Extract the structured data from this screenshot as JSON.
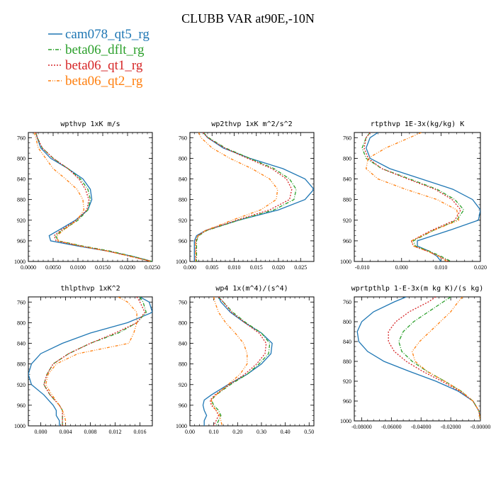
{
  "title": "CLUBB VAR at90E,-10N",
  "legend": [
    {
      "name": "cam078_qt5_rg",
      "color": "#1f77b4",
      "dash": ""
    },
    {
      "name": "beta06_dflt_rg",
      "color": "#2ca02c",
      "dash": "5,2,1,2"
    },
    {
      "name": "beta06_qt1_rg",
      "color": "#d62728",
      "dash": "2,2"
    },
    {
      "name": "beta06_qt2_rg",
      "color": "#ff7f0e",
      "dash": "4,2,1,2,1,2"
    }
  ],
  "chart_data": [
    {
      "type": "line",
      "title": "wpthvp  1xK m/s",
      "xlim": [
        0,
        0.025
      ],
      "xticks": [
        0,
        0.005,
        0.01,
        0.015,
        0.02,
        0.025
      ],
      "xtick_labels": [
        "0.0000",
        "0.0050",
        "0.0100",
        "0.0150",
        "0.0200",
        "0.0250"
      ],
      "ylim": [
        1000,
        750
      ],
      "yticks": [
        760,
        800,
        840,
        880,
        920,
        960,
        1000
      ],
      "y": [
        750,
        760,
        780,
        800,
        820,
        840,
        860,
        880,
        900,
        920,
        940,
        950,
        960,
        970,
        980,
        990,
        1000
      ],
      "series": [
        {
          "name": "cam078_qt5_rg",
          "values": [
            0.0015,
            0.0018,
            0.0025,
            0.0045,
            0.008,
            0.011,
            0.0125,
            0.0128,
            0.012,
            0.0095,
            0.006,
            0.0042,
            0.0045,
            0.01,
            0.016,
            0.021,
            0.025
          ]
        },
        {
          "name": "beta06_dflt_rg",
          "values": [
            0.0015,
            0.0018,
            0.0028,
            0.005,
            0.008,
            0.0105,
            0.012,
            0.0125,
            0.012,
            0.01,
            0.0068,
            0.0055,
            0.006,
            0.011,
            0.0165,
            0.021,
            0.025
          ]
        },
        {
          "name": "beta06_qt1_rg",
          "values": [
            0.0015,
            0.0018,
            0.0028,
            0.005,
            0.008,
            0.0102,
            0.0115,
            0.0122,
            0.0118,
            0.0097,
            0.0065,
            0.0052,
            0.0056,
            0.0105,
            0.016,
            0.0205,
            0.0248
          ]
        },
        {
          "name": "beta06_qt2_rg",
          "values": [
            0.0012,
            0.0015,
            0.002,
            0.0035,
            0.005,
            0.0075,
            0.0098,
            0.011,
            0.0112,
            0.0098,
            0.007,
            0.0058,
            0.006,
            0.0105,
            0.016,
            0.0205,
            0.0248
          ]
        }
      ]
    },
    {
      "type": "line",
      "title": "wp2thvp  1xK m^2/s^2",
      "xlim": [
        0,
        0.028
      ],
      "xticks": [
        0,
        0.005,
        0.01,
        0.015,
        0.02,
        0.025
      ],
      "xtick_labels": [
        "0.000",
        "0.005",
        "0.010",
        "0.015",
        "0.020",
        "0.025"
      ],
      "ylim": [
        1000,
        750
      ],
      "yticks": [
        760,
        800,
        840,
        880,
        920,
        960,
        1000
      ],
      "y": [
        750,
        760,
        780,
        800,
        820,
        840,
        860,
        880,
        900,
        920,
        940,
        950,
        960,
        980,
        1000
      ],
      "series": [
        {
          "name": "cam078_qt5_rg",
          "values": [
            0.003,
            0.004,
            0.0075,
            0.0135,
            0.021,
            0.026,
            0.028,
            0.026,
            0.02,
            0.011,
            0.0035,
            0.0015,
            0.001,
            0.001,
            0.001
          ]
        },
        {
          "name": "beta06_dflt_rg",
          "values": [
            0.003,
            0.0042,
            0.008,
            0.0135,
            0.019,
            0.0225,
            0.024,
            0.0235,
            0.019,
            0.011,
            0.0038,
            0.002,
            0.0015,
            0.0015,
            0.0015
          ]
        },
        {
          "name": "beta06_qt1_rg",
          "values": [
            0.003,
            0.004,
            0.0078,
            0.013,
            0.0185,
            0.0218,
            0.023,
            0.0225,
            0.018,
            0.0105,
            0.0036,
            0.0018,
            0.0013,
            0.0013,
            0.0013
          ]
        },
        {
          "name": "beta06_qt2_rg",
          "values": [
            0.002,
            0.0025,
            0.005,
            0.009,
            0.014,
            0.018,
            0.0198,
            0.0195,
            0.016,
            0.0095,
            0.0035,
            0.0018,
            0.0013,
            0.0013,
            0.0013
          ]
        }
      ]
    },
    {
      "type": "line",
      "title": "rtpthvp  1E-3x(kg/kg) K",
      "xlim": [
        -0.012,
        0.02
      ],
      "xticks": [
        -0.01,
        0,
        0.01,
        0.02
      ],
      "xtick_labels": [
        "-0.010",
        "0.000",
        "0.010",
        "0.020"
      ],
      "ylim": [
        1000,
        750
      ],
      "yticks": [
        760,
        800,
        840,
        880,
        920,
        960,
        1000
      ],
      "y": [
        750,
        760,
        780,
        800,
        820,
        840,
        860,
        880,
        900,
        920,
        940,
        960,
        970,
        980,
        990,
        1000
      ],
      "series": [
        {
          "name": "cam078_qt5_rg",
          "values": [
            -0.006,
            -0.008,
            -0.009,
            -0.008,
            -0.003,
            0.005,
            0.013,
            0.018,
            0.02,
            0.0195,
            0.012,
            0.004,
            0.004,
            0.007,
            0.009,
            0.01
          ]
        },
        {
          "name": "beta06_dflt_rg",
          "values": [
            -0.008,
            -0.009,
            -0.01,
            -0.009,
            -0.005,
            0.002,
            0.009,
            0.0135,
            0.0158,
            0.014,
            0.008,
            0.003,
            0.0035,
            0.007,
            0.01,
            0.0125
          ]
        },
        {
          "name": "beta06_qt1_rg",
          "values": [
            -0.008,
            -0.009,
            -0.0095,
            -0.0085,
            -0.005,
            0.0015,
            0.0085,
            0.0128,
            0.015,
            0.0135,
            0.0075,
            0.0025,
            0.003,
            0.0065,
            0.0095,
            0.012
          ]
        },
        {
          "name": "beta06_qt2_rg",
          "values": [
            0.005,
            0.002,
            -0.004,
            -0.0085,
            -0.009,
            -0.006,
            0.001,
            0.009,
            0.014,
            0.0145,
            0.008,
            0.0025,
            0.003,
            0.0065,
            0.0095,
            0.0115
          ]
        }
      ]
    },
    {
      "type": "line",
      "title": "thlpthvp  1xK^2",
      "xlim": [
        -0.002,
        0.018
      ],
      "xticks": [
        0,
        0.004,
        0.008,
        0.012,
        0.016
      ],
      "xtick_labels": [
        "0.000",
        "0.004",
        "0.008",
        "0.012",
        "0.016"
      ],
      "ylim": [
        1000,
        750
      ],
      "yticks": [
        760,
        800,
        840,
        880,
        920,
        960,
        1000
      ],
      "y": [
        750,
        760,
        780,
        800,
        820,
        840,
        860,
        880,
        900,
        920,
        940,
        960,
        970,
        980,
        990,
        1000
      ],
      "series": [
        {
          "name": "cam078_qt5_rg",
          "values": [
            0.016,
            0.0175,
            0.018,
            0.014,
            0.008,
            0.0035,
            0,
            -0.0015,
            -0.002,
            -0.0015,
            0.0005,
            0.002,
            0.0025,
            0.0025,
            0.003,
            0.003
          ]
        },
        {
          "name": "beta06_dflt_rg",
          "values": [
            0.016,
            0.0165,
            0.017,
            0.0155,
            0.0125,
            0.008,
            0.0045,
            0.002,
            0.001,
            0.0005,
            0.0015,
            0.003,
            0.0035,
            0.0035,
            0.0035,
            0.0035
          ]
        },
        {
          "name": "beta06_qt1_rg",
          "values": [
            0.0155,
            0.016,
            0.0168,
            0.0155,
            0.012,
            0.008,
            0.0045,
            0.002,
            0.001,
            0.0005,
            0.0015,
            0.003,
            0.0035,
            0.0035,
            0.0035,
            0.0035
          ]
        },
        {
          "name": "beta06_qt2_rg",
          "values": [
            0.0125,
            0.014,
            0.0155,
            0.0155,
            0.015,
            0.0142,
            0.006,
            0.0025,
            0.0012,
            0.0008,
            0.0018,
            0.003,
            0.0035,
            0.0038,
            0.004,
            0.004
          ]
        }
      ]
    },
    {
      "type": "line",
      "title": "wp4  1x(m^4)/(s^4)",
      "xlim": [
        0,
        0.52
      ],
      "xticks": [
        0,
        0.1,
        0.2,
        0.3,
        0.4,
        0.5
      ],
      "xtick_labels": [
        "0.00",
        "0.10",
        "0.20",
        "0.30",
        "0.40",
        "0.50"
      ],
      "ylim": [
        1000,
        750
      ],
      "yticks": [
        760,
        800,
        840,
        880,
        920,
        960,
        1000
      ],
      "y": [
        750,
        760,
        780,
        800,
        820,
        840,
        860,
        880,
        900,
        920,
        940,
        950,
        960,
        970,
        980,
        990,
        1000
      ],
      "series": [
        {
          "name": "cam078_qt5_rg",
          "values": [
            0.12,
            0.13,
            0.17,
            0.23,
            0.3,
            0.345,
            0.34,
            0.3,
            0.24,
            0.16,
            0.09,
            0.06,
            0.055,
            0.06,
            0.07,
            0.06,
            0.06
          ]
        },
        {
          "name": "beta06_dflt_rg",
          "values": [
            0.12,
            0.14,
            0.18,
            0.235,
            0.3,
            0.335,
            0.33,
            0.29,
            0.24,
            0.17,
            0.11,
            0.09,
            0.1,
            0.12,
            0.13,
            0.12,
            0.11
          ]
        },
        {
          "name": "beta06_qt1_rg",
          "values": [
            0.12,
            0.14,
            0.175,
            0.23,
            0.29,
            0.32,
            0.315,
            0.28,
            0.23,
            0.165,
            0.105,
            0.085,
            0.09,
            0.11,
            0.12,
            0.11,
            0.1
          ]
        },
        {
          "name": "beta06_qt2_rg",
          "values": [
            0.1,
            0.105,
            0.12,
            0.15,
            0.19,
            0.225,
            0.24,
            0.24,
            0.21,
            0.16,
            0.11,
            0.09,
            0.095,
            0.11,
            0.125,
            0.13,
            0.135
          ]
        }
      ]
    },
    {
      "type": "line",
      "title": "wprtpthlp  1-E-3x(m kg K)/(s kg)",
      "xlim": [
        -0.085,
        0
      ],
      "xticks": [
        -0.08,
        -0.06,
        -0.04,
        -0.02,
        0
      ],
      "xtick_labels": [
        "-0.08000",
        "-0.06000",
        "-0.04000",
        "-0.02000",
        "-0.00000"
      ],
      "ylim": [
        1000,
        750
      ],
      "yticks": [
        760,
        800,
        840,
        880,
        920,
        960,
        1000
      ],
      "y": [
        750,
        760,
        780,
        800,
        820,
        840,
        860,
        880,
        900,
        920,
        940,
        960,
        980,
        1000
      ],
      "series": [
        {
          "name": "cam078_qt5_rg",
          "values": [
            -0.05,
            -0.058,
            -0.072,
            -0.08,
            -0.083,
            -0.082,
            -0.076,
            -0.065,
            -0.048,
            -0.03,
            -0.015,
            -0.005,
            -0.001,
            0
          ]
        },
        {
          "name": "beta06_dflt_rg",
          "values": [
            -0.02,
            -0.025,
            -0.035,
            -0.045,
            -0.052,
            -0.055,
            -0.053,
            -0.046,
            -0.036,
            -0.024,
            -0.013,
            -0.005,
            -0.001,
            0
          ]
        },
        {
          "name": "beta06_qt1_rg",
          "values": [
            -0.03,
            -0.035,
            -0.048,
            -0.057,
            -0.062,
            -0.062,
            -0.058,
            -0.05,
            -0.039,
            -0.026,
            -0.014,
            -0.005,
            -0.001,
            0
          ]
        },
        {
          "name": "beta06_qt2_rg",
          "values": [
            -0.012,
            -0.015,
            -0.02,
            -0.027,
            -0.034,
            -0.041,
            -0.046,
            -0.044,
            -0.036,
            -0.024,
            -0.013,
            -0.005,
            -0.001,
            0
          ]
        }
      ]
    }
  ]
}
